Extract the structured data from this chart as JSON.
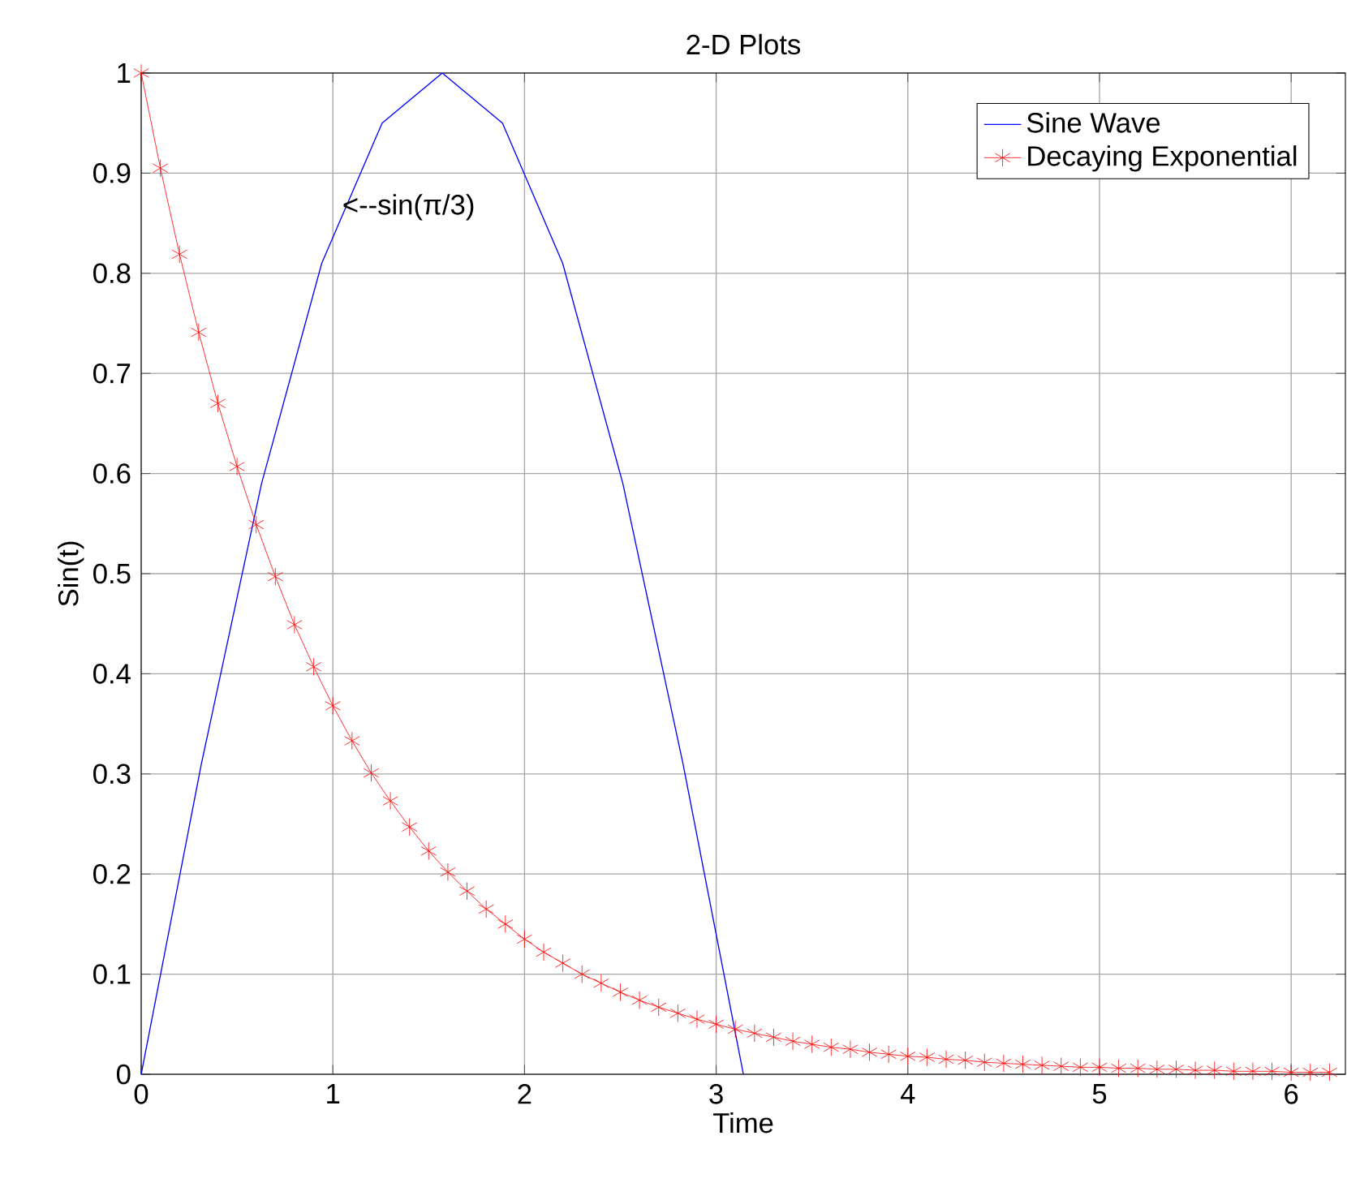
{
  "chart_data": {
    "type": "line",
    "title": "2-D Plots",
    "xlabel": "Time",
    "ylabel": "Sin(t)",
    "xlim": [
      0,
      6.283
    ],
    "ylim": [
      0,
      1
    ],
    "xticks": [
      0,
      1,
      2,
      3,
      4,
      5,
      6
    ],
    "yticks": [
      0,
      0.1,
      0.2,
      0.3,
      0.4,
      0.5,
      0.6,
      0.7,
      0.8,
      0.9,
      1
    ],
    "grid": true,
    "legend": "top right",
    "annotations": [
      {
        "text": "<--sin(π/3)",
        "x": 1.047,
        "y": 0.866
      }
    ],
    "series": [
      {
        "name": "Sine Wave",
        "color": "#0000ff",
        "marker": "none",
        "x": [
          0,
          0.314,
          0.628,
          0.942,
          1.257,
          1.571,
          1.885,
          2.199,
          2.513,
          2.827,
          3.142
        ],
        "values": [
          0,
          0.31,
          0.59,
          0.81,
          0.95,
          1,
          0.95,
          0.81,
          0.59,
          0.31,
          0
        ]
      },
      {
        "name": "Decaying Exponential",
        "color": "#ff0000",
        "marker": "cross",
        "x": [
          0,
          0.1,
          0.2,
          0.3,
          0.4,
          0.5,
          0.6,
          0.7,
          0.8,
          0.9,
          1,
          1.1,
          1.2,
          1.3,
          1.4,
          1.5,
          1.6,
          1.7,
          1.8,
          1.9,
          2,
          2.1,
          2.2,
          2.3,
          2.4,
          2.5,
          2.6,
          2.7,
          2.8,
          2.9,
          3,
          3.1,
          3.2,
          3.3,
          3.4,
          3.5,
          3.6,
          3.7,
          3.8,
          3.9,
          4,
          4.1,
          4.2,
          4.3,
          4.4,
          4.5,
          4.6,
          4.7,
          4.8,
          4.9,
          5,
          5.1,
          5.2,
          5.3,
          5.4,
          5.5,
          5.6,
          5.7,
          5.8,
          5.9,
          6,
          6.1,
          6.2
        ],
        "values": [
          1,
          0.905,
          0.819,
          0.741,
          0.67,
          0.607,
          0.549,
          0.497,
          0.449,
          0.407,
          0.368,
          0.333,
          0.301,
          0.273,
          0.247,
          0.223,
          0.202,
          0.183,
          0.165,
          0.15,
          0.135,
          0.122,
          0.111,
          0.1,
          0.091,
          0.082,
          0.074,
          0.067,
          0.061,
          0.055,
          0.05,
          0.045,
          0.041,
          0.037,
          0.033,
          0.03,
          0.027,
          0.025,
          0.022,
          0.02,
          0.018,
          0.017,
          0.015,
          0.014,
          0.012,
          0.011,
          0.01,
          0.009,
          0.008,
          0.007,
          0.007,
          0.006,
          0.006,
          0.005,
          0.005,
          0.004,
          0.004,
          0.003,
          0.003,
          0.003,
          0.002,
          0.002,
          0.002
        ]
      }
    ]
  }
}
